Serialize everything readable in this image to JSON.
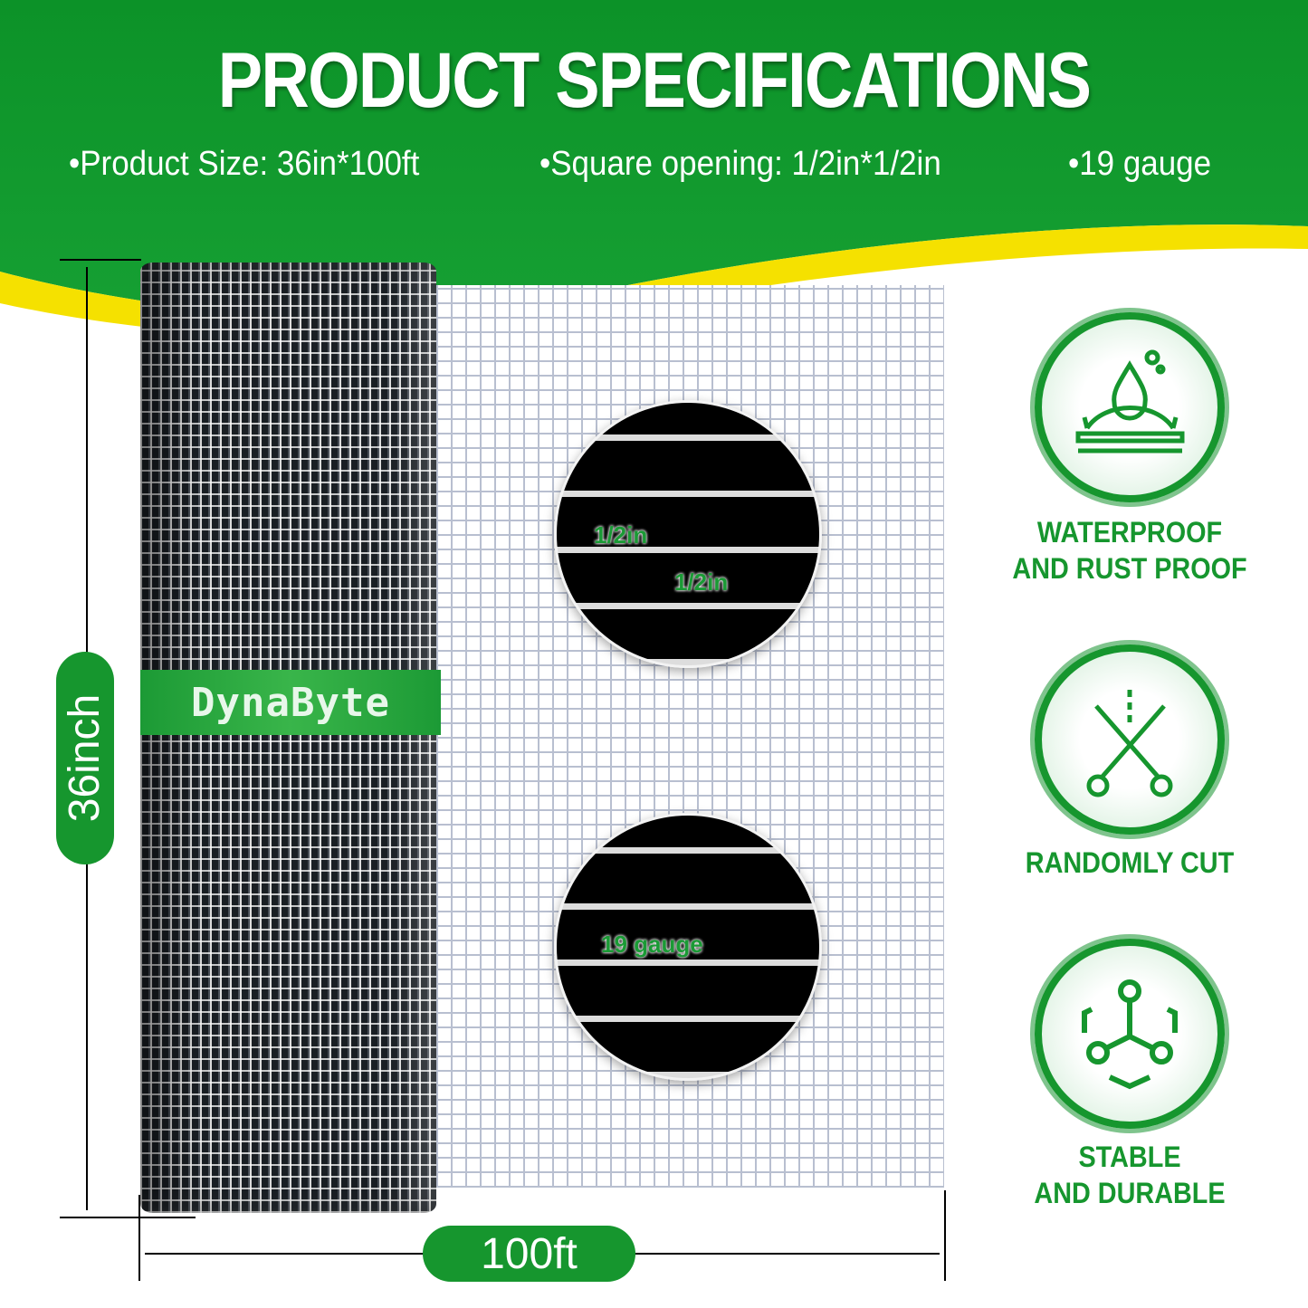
{
  "header": {
    "title": "PRODUCT SPECIFICATIONS",
    "specs": [
      "•Product Size: 36in*100ft",
      "•Square opening: 1/2in*1/2in",
      "•19 gauge"
    ]
  },
  "product": {
    "brand": "DynaByte",
    "height_label": "36inch",
    "length_label": "100ft"
  },
  "detail_circles": {
    "opening_vertical": "1/2in",
    "opening_horizontal": "1/2in",
    "gauge": "19 gauge"
  },
  "features": [
    {
      "icon": "waterproof-icon",
      "label_line1": "WATERPROOF",
      "label_line2": "AND RUST PROOF"
    },
    {
      "icon": "scissors-icon",
      "label_line1": "RANDOMLY CUT",
      "label_line2": ""
    },
    {
      "icon": "stable-structure-icon",
      "label_line1": "STABLE",
      "label_line2": "AND DURABLE"
    }
  ],
  "colors": {
    "green": "#16962e",
    "yellow": "#f5e100"
  }
}
